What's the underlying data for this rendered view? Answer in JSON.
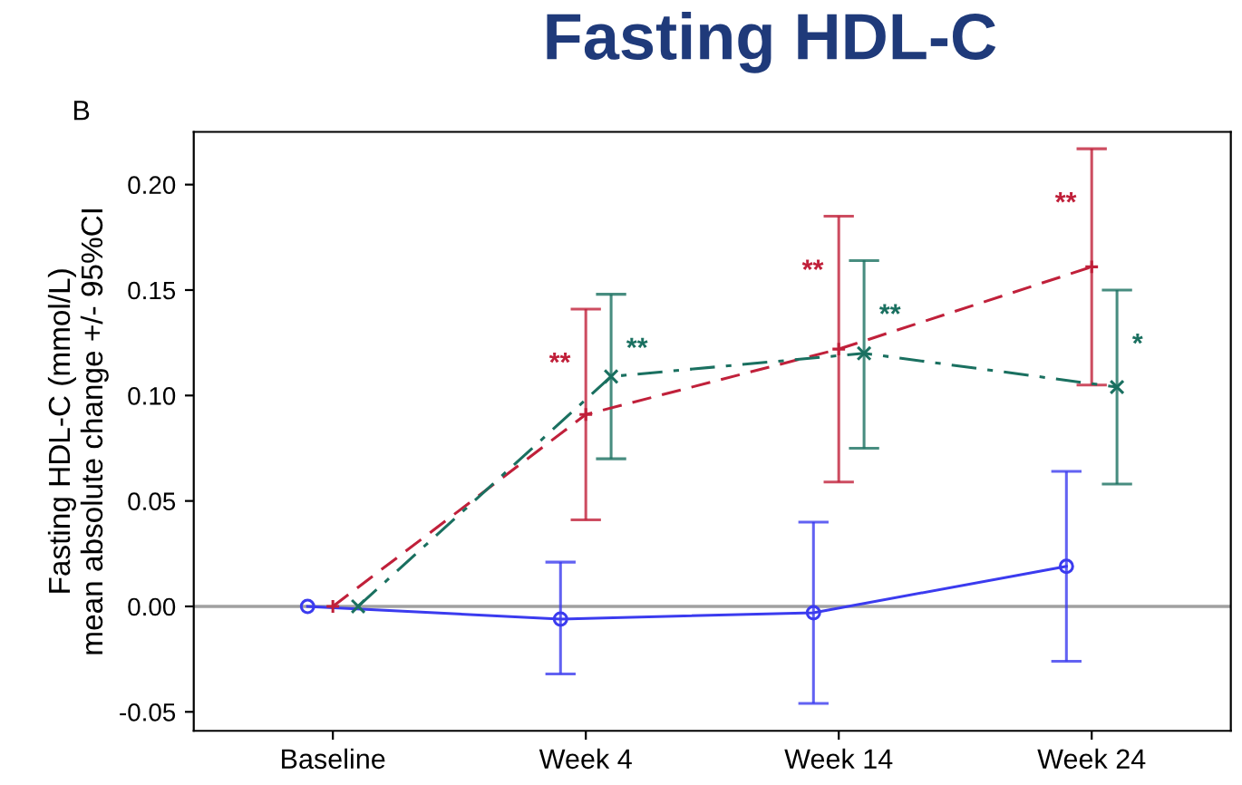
{
  "chart_data": {
    "type": "line",
    "title": "Fasting HDL-C",
    "ylabel": "Fasting HDL-C (mmol/L)\nmean absolute change +/- 95%CI",
    "annotations": [
      "B",
      "**",
      "**",
      "**",
      "**",
      "**",
      "*"
    ],
    "categories": [
      "Baseline",
      "Week 4",
      "Week 14",
      "Week 24"
    ],
    "series": [
      {
        "color": "#3b3bef",
        "values": [
          0,
          -0.006,
          -0.003,
          0.019
        ],
        "errors": [
          null,
          [
            -0.032,
            0.021
          ],
          [
            -0.046,
            0.04
          ],
          [
            -0.026,
            0.064
          ]
        ],
        "marker": "circle",
        "line_style": "solid"
      },
      {
        "color": "#c0203a",
        "values": [
          0,
          0.091,
          0.122,
          0.161
        ],
        "errors": [
          null,
          [
            0.041,
            0.141
          ],
          [
            0.059,
            0.185
          ],
          [
            0.105,
            0.217
          ]
        ],
        "marker": "plus",
        "line_style": "dashed"
      },
      {
        "color": "#1a7060",
        "values": [
          0,
          0.109,
          0.12,
          0.104
        ],
        "errors": [
          null,
          [
            0.07,
            0.148
          ],
          [
            0.075,
            0.164
          ],
          [
            0.058,
            0.15
          ]
        ],
        "marker": "cross",
        "line_style": "dashdot"
      }
    ],
    "ylim": [
      -0.059,
      0.225
    ],
    "yticks": [
      {
        "value": -0.05,
        "label": "-0.05"
      },
      {
        "value": 0,
        "label": "0.00"
      },
      {
        "value": 0.05,
        "label": "0.05"
      },
      {
        "value": 0.1,
        "label": "0.10"
      },
      {
        "value": 0.15,
        "label": "0.15"
      },
      {
        "value": 0.2,
        "label": "0.20"
      }
    ],
    "ref_lines": [
      {
        "axis": "y",
        "value": 0,
        "color": "#a0a0a0"
      }
    ],
    "grid": false,
    "legend": false
  }
}
